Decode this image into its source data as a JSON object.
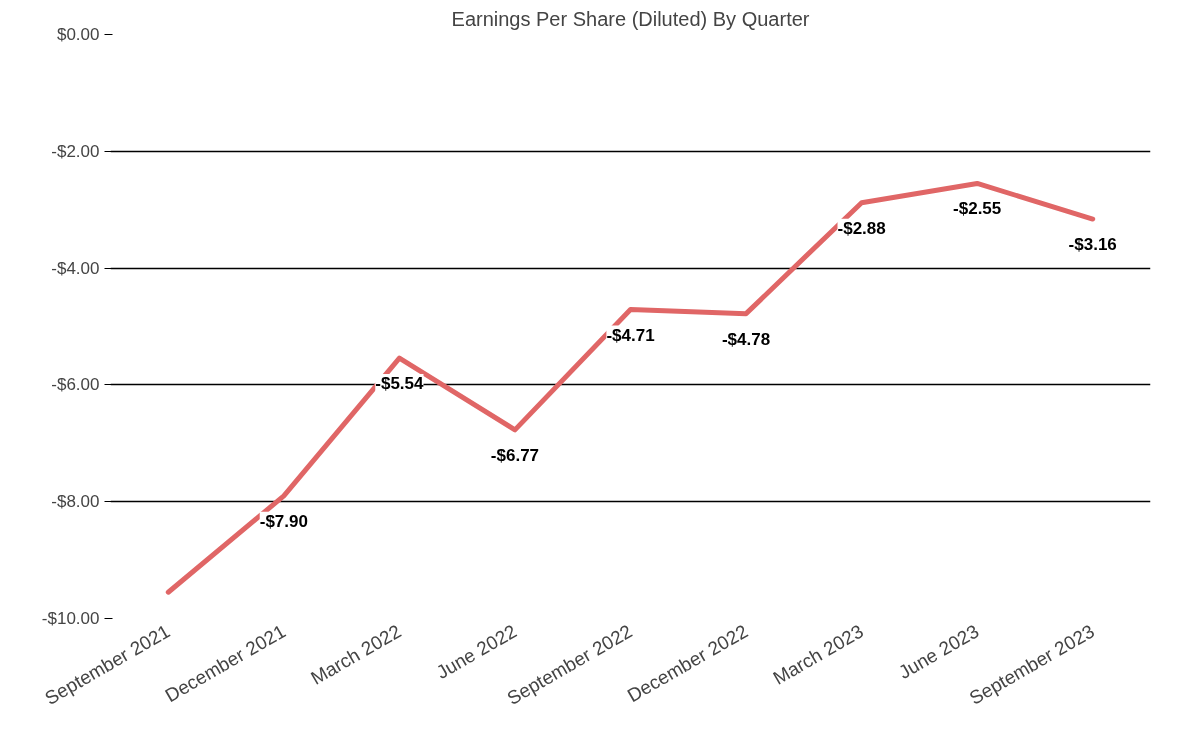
{
  "chart_data": {
    "type": "line",
    "title": "Earnings Per Share (Diluted) By Quarter",
    "categories": [
      "September 2021",
      "December 2021",
      "March 2022",
      "June 2022",
      "September 2022",
      "December 2022",
      "March 2023",
      "June 2023",
      "September 2023"
    ],
    "series": [
      {
        "color": "#e06666",
        "values": [
          -9.55,
          -7.9,
          -5.54,
          -6.77,
          -4.71,
          -4.78,
          -2.88,
          -2.55,
          -3.16
        ],
        "value_labels": [
          null,
          "-$7.90",
          "-$5.54",
          "-$6.77",
          "-$4.71",
          "-$4.78",
          "-$2.88",
          "-$2.55",
          "-$3.16"
        ]
      }
    ],
    "ylim": [
      -10,
      0
    ],
    "yticks": [
      {
        "value": 0,
        "label": "$0.00"
      },
      {
        "value": -2,
        "label": "-$2.00"
      },
      {
        "value": -4,
        "label": "-$4.00"
      },
      {
        "value": -6,
        "label": "-$6.00"
      },
      {
        "value": -8,
        "label": "-$8.00"
      },
      {
        "value": -10,
        "label": "-$10.00"
      }
    ],
    "grid": "y",
    "legend": false,
    "marker": "none",
    "line_style": "solid"
  }
}
